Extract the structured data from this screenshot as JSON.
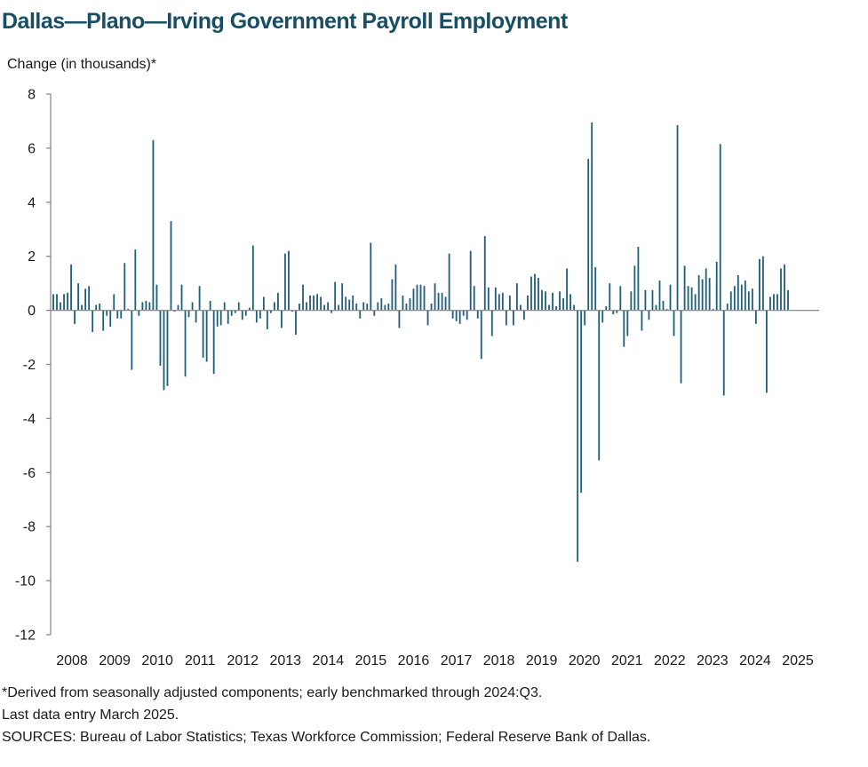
{
  "header": {
    "title": "Dallas—Plano—Irving Government Payroll Employment",
    "y_axis_label": "Change (in thousands)*"
  },
  "footer": {
    "note1": "*Derived from seasonally adjusted components; early benchmarked through 2024:Q3.",
    "note2": "Last data entry March 2025.",
    "sources": "SOURCES: Bureau of Labor Statistics; Texas Workforce Commission; Federal Reserve Bank of Dallas."
  },
  "colors": {
    "bar": "#1f5d78",
    "axis": "#8c8c8c",
    "title": "#174e63"
  },
  "chart_data": {
    "type": "bar",
    "title": "Dallas—Plano—Irving Government Payroll Employment",
    "ylabel": "Change (in thousands)*",
    "ylim": [
      -12,
      8
    ],
    "yticks": [
      8,
      6,
      4,
      2,
      0,
      -2,
      -4,
      -6,
      -8,
      -10,
      -12
    ],
    "x_tick_labels": [
      "2008",
      "2009",
      "2010",
      "2011",
      "2012",
      "2013",
      "2014",
      "2015",
      "2016",
      "2017",
      "2018",
      "2019",
      "2020",
      "2021",
      "2022",
      "2023",
      "2024",
      "2025"
    ],
    "grid": false,
    "legend": "none",
    "frequency": "monthly",
    "start": "2008-01",
    "end": "2025-03",
    "series": [
      {
        "values": [
          0.6,
          0.6,
          0.3,
          0.6,
          0.65,
          1.7,
          -0.5,
          1.0,
          0.2,
          0.8,
          0.9,
          -0.8,
          0.2,
          0.25,
          -0.75,
          -0.2,
          -0.6,
          0.6,
          -0.3,
          -0.3,
          1.75,
          0.05,
          -2.2,
          2.25,
          -0.2,
          0.3,
          0.35,
          0.3,
          6.3,
          0.95,
          -2.05,
          -2.95,
          -2.8,
          3.3,
          -0.05,
          0.2,
          0.95,
          -2.45,
          -0.25,
          0.3,
          -0.45,
          0.9,
          -1.75,
          -1.9,
          0.35,
          -2.35,
          -0.6,
          -0.55,
          0.3,
          -0.5,
          -0.2,
          -0.1,
          0.3,
          -0.35,
          -0.2,
          0.1,
          2.4,
          -0.45,
          -0.3,
          0.5,
          -0.7,
          -0.1,
          0.3,
          0.65,
          -0.65,
          2.1,
          2.2,
          -0.05,
          -0.9,
          0.25,
          0.95,
          0.3,
          0.55,
          0.55,
          0.6,
          0.5,
          0.2,
          0.3,
          -0.1,
          1.05,
          0.2,
          1.0,
          0.5,
          0.4,
          0.55,
          0.25,
          -0.3,
          0.3,
          0.25,
          2.5,
          -0.2,
          0.3,
          0.45,
          0.2,
          0.25,
          1.15,
          1.7,
          -0.65,
          0.55,
          0.25,
          0.45,
          0.8,
          0.95,
          0.95,
          0.9,
          -0.55,
          0.25,
          1.0,
          0.65,
          0.65,
          0.5,
          2.1,
          -0.3,
          -0.4,
          -0.5,
          -0.2,
          -0.35,
          2.2,
          0.9,
          -0.3,
          -1.8,
          2.75,
          0.85,
          -0.95,
          0.85,
          0.6,
          0.65,
          -0.55,
          0.55,
          -0.55,
          1.0,
          0.2,
          -0.35,
          0.55,
          1.25,
          1.35,
          1.2,
          0.75,
          0.7,
          0.2,
          0.65,
          0.15,
          0.7,
          0.45,
          1.55,
          0.6,
          0.2,
          -9.3,
          -6.75,
          -0.55,
          5.6,
          6.95,
          1.6,
          -5.55,
          -0.45,
          0.15,
          1.0,
          -0.15,
          -0.1,
          0.9,
          -1.35,
          -0.95,
          0.7,
          1.65,
          2.35,
          -0.75,
          0.75,
          -0.35,
          0.75,
          0.2,
          1.1,
          0.35,
          0.05,
          0.95,
          -0.95,
          6.85,
          -2.7,
          1.65,
          0.9,
          0.85,
          0.6,
          1.3,
          1.15,
          1.55,
          1.2,
          0.05,
          1.8,
          6.15,
          -3.15,
          0.25,
          0.7,
          0.9,
          1.3,
          0.95,
          1.1,
          0.7,
          0.8,
          -0.5,
          1.9,
          2.0,
          -3.05,
          0.5,
          0.6,
          0.6,
          1.55,
          1.7,
          0.75
        ]
      }
    ]
  }
}
